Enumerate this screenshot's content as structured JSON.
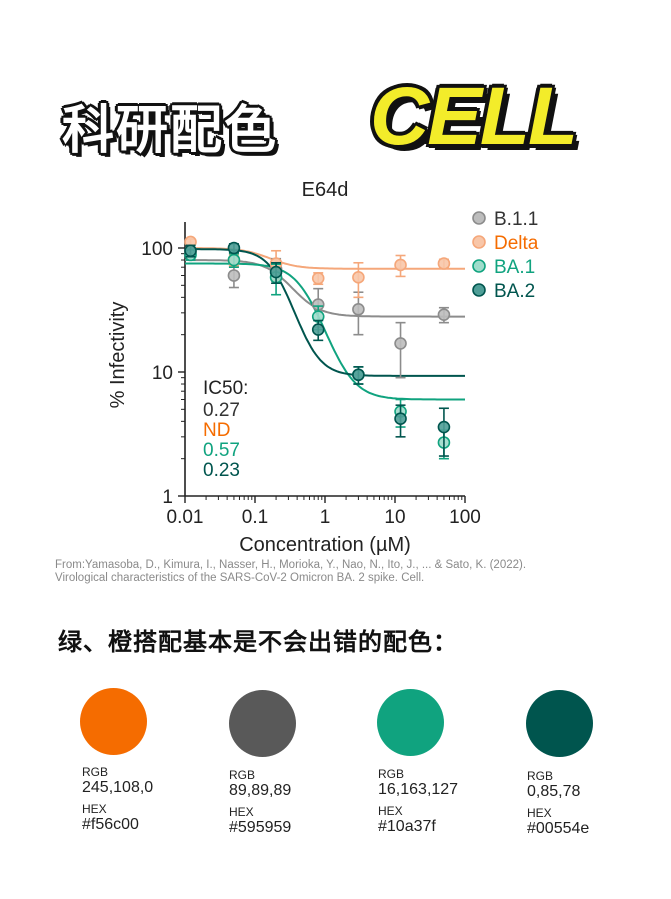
{
  "header": {
    "title_zh": "科研配色",
    "title_en": "CELL"
  },
  "chart_data": {
    "type": "scatter",
    "title": "E64d",
    "xlabel": "Concentration (µM)",
    "ylabel": "% Infectivity",
    "xscale": "log",
    "yscale": "log",
    "xlim": [
      0.01,
      100
    ],
    "ylim": [
      1,
      150
    ],
    "xticks": [
      "0.01",
      "0.1",
      "1",
      "10",
      "100"
    ],
    "yticks": [
      "1",
      "10",
      "100"
    ],
    "legend_position": "top-right",
    "series": [
      {
        "name": "B.1.1",
        "color": "#8c8c8c",
        "fill": "#bdbdbd",
        "x": [
          0.012,
          0.05,
          0.2,
          0.8,
          3,
          12,
          50
        ],
        "y": [
          92,
          60,
          68,
          35,
          32,
          17,
          29
        ],
        "err": [
          8,
          12,
          14,
          12,
          12,
          8,
          4
        ],
        "fit": {
          "top": 80,
          "bottom": 28,
          "ic50": 0.27,
          "hill": 2.2
        }
      },
      {
        "name": "Delta",
        "color": "#f5a77a",
        "fill": "#f8c6a8",
        "x": [
          0.012,
          0.05,
          0.2,
          0.8,
          3,
          12,
          50
        ],
        "y": [
          112,
          80,
          75,
          57,
          58,
          73,
          75
        ],
        "err": [
          6,
          8,
          20,
          6,
          18,
          14,
          6
        ],
        "fit": {
          "top": 100,
          "bottom": 68,
          "ic50": 0.15,
          "hill": 2.2
        }
      },
      {
        "name": "BA.1",
        "color": "#10a37f",
        "fill": "#9fdccb",
        "x": [
          0.012,
          0.05,
          0.2,
          0.8,
          3,
          12,
          50
        ],
        "y": [
          88,
          80,
          58,
          28,
          9.5,
          4.8,
          2.7
        ],
        "err": [
          8,
          10,
          16,
          6,
          1.5,
          1.2,
          0.7
        ],
        "fit": {
          "top": 75,
          "bottom": 6,
          "ic50": 0.57,
          "hill": 2.2
        }
      },
      {
        "name": "BA.2",
        "color": "#00554e",
        "fill": "#4f9e97",
        "x": [
          0.012,
          0.05,
          0.2,
          0.8,
          3,
          12,
          50
        ],
        "y": [
          95,
          100,
          64,
          22,
          9.5,
          4.2,
          3.6
        ],
        "err": [
          10,
          8,
          12,
          4,
          1.5,
          1.2,
          1.5
        ],
        "fit": {
          "top": 98,
          "bottom": 9.3,
          "ic50": 0.23,
          "hill": 2.5
        }
      }
    ],
    "annotation": {
      "header": "IC50:",
      "lines": [
        {
          "text": "0.27",
          "color": "#333333"
        },
        {
          "text": "ND",
          "color": "#f56c00"
        },
        {
          "text": "0.57",
          "color": "#10a37f"
        },
        {
          "text": "0.23",
          "color": "#00554e"
        }
      ]
    }
  },
  "citation": {
    "line1": "From:Yamasoba, D., Kimura, I., Nasser, H., Morioka, Y., Nao, N., Ito, J., ... & Sato, K. (2022).",
    "line2": "Virological characteristics of the SARS-CoV-2 Omicron BA. 2 spike. Cell."
  },
  "subheading": "绿、橙搭配基本是不会出错的配色：",
  "swatches": [
    {
      "color": "#f56c00",
      "rgb_label": "RGB",
      "rgb": "245,108,0",
      "hex_label": "HEX",
      "hex": "#f56c00"
    },
    {
      "color": "#595959",
      "rgb_label": "RGB",
      "rgb": "89,89,89",
      "hex_label": "HEX",
      "hex": "#595959"
    },
    {
      "color": "#10a37f",
      "rgb_label": "RGB",
      "rgb": "16,163,127",
      "hex_label": "HEX",
      "hex": "#10a37f"
    },
    {
      "color": "#00554e",
      "rgb_label": "RGB",
      "rgb": "0,85,78",
      "hex_label": "HEX",
      "hex": "#00554e"
    }
  ]
}
